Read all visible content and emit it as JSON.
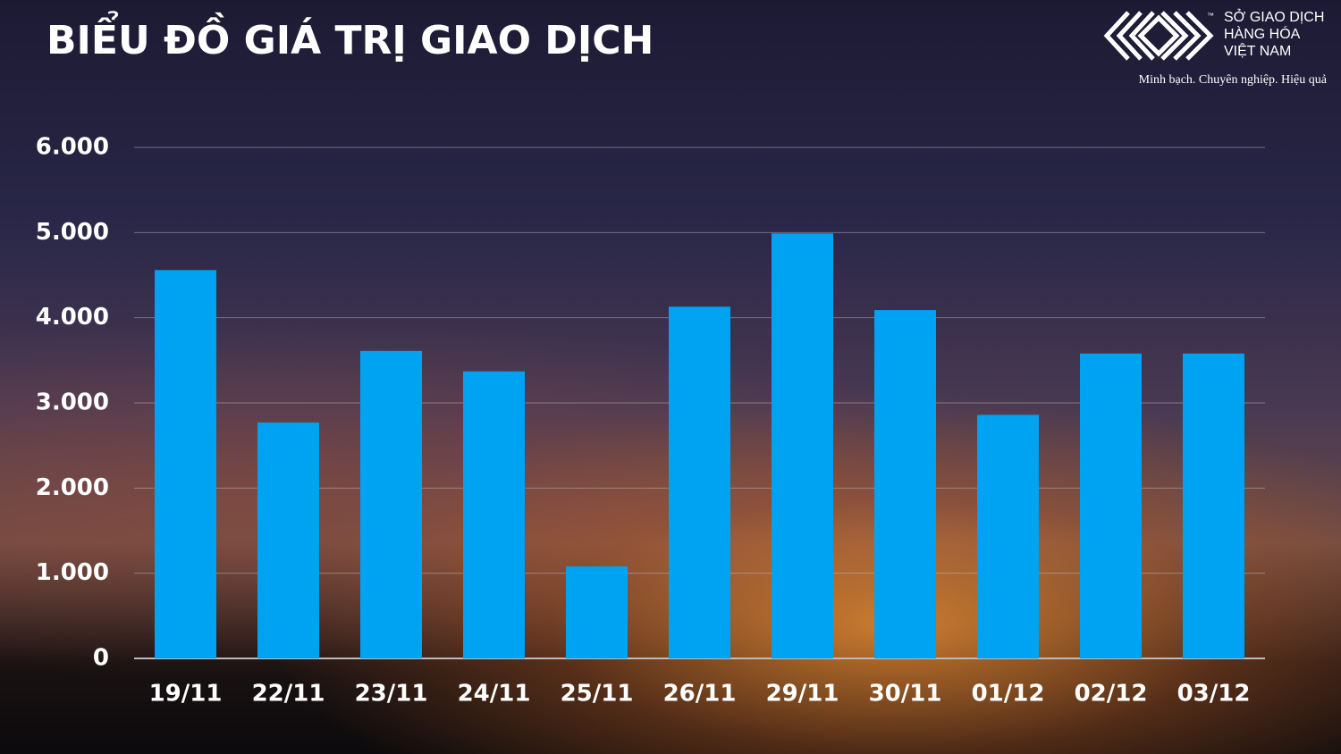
{
  "chart_data": {
    "type": "bar",
    "title": "BIỂU ĐỒ GIÁ TRỊ GIAO DỊCH",
    "categories": [
      "19/11",
      "22/11",
      "23/11",
      "24/11",
      "25/11",
      "26/11",
      "29/11",
      "30/11",
      "01/12",
      "02/12",
      "03/12"
    ],
    "values": [
      4560,
      2770,
      3610,
      3370,
      1080,
      4130,
      4990,
      4090,
      2860,
      3580,
      3580
    ],
    "color": "#00a2f2",
    "ylim": [
      0,
      6000
    ],
    "yticks": [
      0,
      {
        "value": 1000,
        "label": "1.000"
      },
      {
        "value": 2000,
        "label": "2.000"
      },
      {
        "value": 3000,
        "label": "3.000"
      },
      {
        "value": 4000,
        "label": "4.000"
      },
      {
        "value": 5000,
        "label": "5.000"
      },
      {
        "value": 6000,
        "label": "6.000"
      }
    ],
    "grid": true
  },
  "logo": {
    "line1": "SỞ GIAO DỊCH",
    "line2": "HÀNG HÓA",
    "line3": "VIỆT NAM",
    "tm": "™",
    "slogan": "Minh bạch. Chuyên nghiệp. Hiệu quả"
  }
}
